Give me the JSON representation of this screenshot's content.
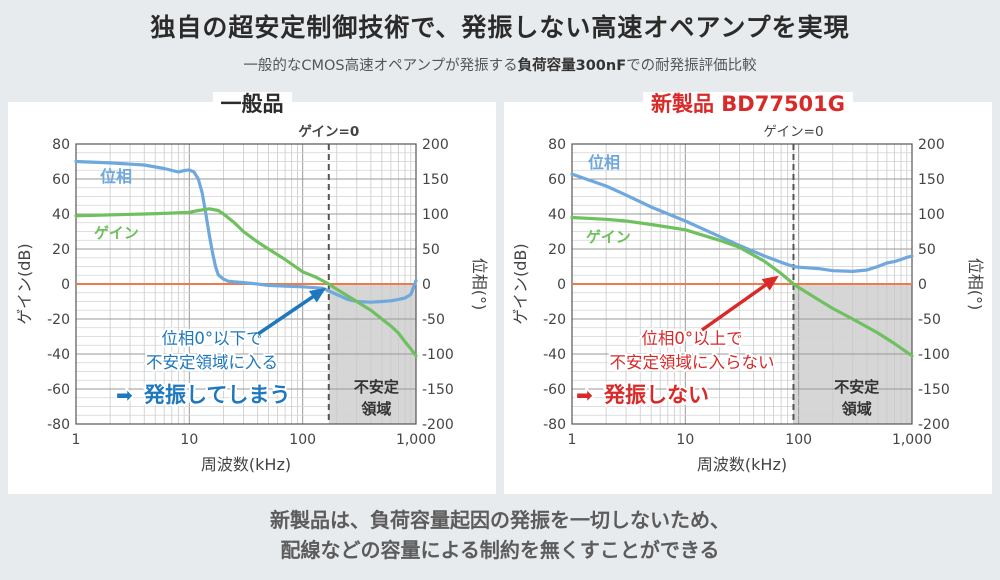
{
  "title": "独自の超安定制御技術で、発振しない高速オペアンプを実現",
  "subtitle_pre": "一般的なCMOS高速オペアンプが発振する",
  "subtitle_bold": "負荷容量300nF",
  "subtitle_post": "での耐発振評価比較",
  "footer_line1": "新製品は、負荷容量起因の発振を一切しないため、",
  "footer_line2": "配線などの容量による制約を無くすことができる",
  "colors": {
    "phase": "#6fa8dc",
    "gain": "#6fc05f",
    "zero_line": "#f07a4a",
    "unstable_fill": "#d6d6d6",
    "red": "#d92a2a",
    "blue_text": "#1e78be"
  },
  "chart_data": [
    {
      "type": "line",
      "title": "一般品",
      "xlabel": "周波数(kHz)",
      "ylabel": "ゲイン(dB)",
      "y2label": "位相(°)",
      "x_scale": "log",
      "xlim": [
        1,
        1000
      ],
      "ylim": [
        -80,
        80
      ],
      "y2lim": [
        -200,
        200
      ],
      "x_ticks": [
        {
          "v": 1,
          "label": "1"
        },
        {
          "v": 10,
          "label": "10"
        },
        {
          "v": 100,
          "label": "100"
        },
        {
          "v": 1000,
          "label": "1,000"
        }
      ],
      "y_ticks": [
        80,
        60,
        40,
        20,
        0,
        -20,
        -40,
        -60,
        -80
      ],
      "y2_ticks": [
        200,
        150,
        100,
        50,
        0,
        -50,
        -100,
        -150,
        -200
      ],
      "grid": true,
      "gain_crossover_kHz": 170,
      "crossover_label": "ゲイン=0",
      "unstable_label_1": "不安定",
      "unstable_label_2": "領域",
      "series": [
        {
          "name": "位相",
          "axis": "right",
          "color": "#6fa8dc",
          "x": [
            1,
            2,
            4,
            6,
            8,
            9,
            10,
            11,
            12,
            13,
            14,
            15,
            16,
            17,
            18,
            20,
            22,
            25,
            30,
            40,
            50,
            70,
            100,
            150,
            200,
            250,
            300,
            400,
            500,
            600,
            700,
            800,
            900,
            950,
            1000
          ],
          "values": [
            175,
            173,
            170,
            165,
            160,
            162,
            163,
            160,
            150,
            130,
            100,
            70,
            45,
            25,
            13,
            7,
            4,
            3,
            2,
            0,
            -2,
            -3,
            -4,
            -6,
            -15,
            -22,
            -25,
            -26,
            -25,
            -24,
            -22,
            -20,
            -15,
            -5,
            5
          ]
        },
        {
          "name": "ゲイン",
          "axis": "left",
          "color": "#6fc05f",
          "x": [
            1,
            2,
            4,
            7,
            10,
            12,
            15,
            18,
            20,
            25,
            30,
            40,
            50,
            70,
            100,
            130,
            170,
            200,
            300,
            400,
            500,
            600,
            700,
            800,
            900,
            1000
          ],
          "values": [
            39,
            39.5,
            40,
            40.5,
            41,
            42,
            43,
            42,
            40,
            35,
            30,
            24,
            20,
            14,
            7,
            4,
            0,
            -3,
            -10,
            -15,
            -20,
            -24,
            -28,
            -33,
            -37,
            -41
          ]
        }
      ],
      "annotation": {
        "line1": "位相0°以下で",
        "line2": "不安定領域に入る",
        "line3": "発振してしまう",
        "arrow": "➡"
      }
    },
    {
      "type": "line",
      "title": "新製品 BD77501G",
      "xlabel": "周波数(kHz)",
      "ylabel": "ゲイン(dB)",
      "y2label": "位相(°)",
      "x_scale": "log",
      "xlim": [
        1,
        1000
      ],
      "ylim": [
        -80,
        80
      ],
      "y2lim": [
        -200,
        200
      ],
      "x_ticks": [
        {
          "v": 1,
          "label": "1"
        },
        {
          "v": 10,
          "label": "10"
        },
        {
          "v": 100,
          "label": "100"
        },
        {
          "v": 1000,
          "label": "1,000"
        }
      ],
      "y_ticks": [
        80,
        60,
        40,
        20,
        0,
        -20,
        -40,
        -60,
        -80
      ],
      "y2_ticks": [
        200,
        150,
        100,
        50,
        0,
        -50,
        -100,
        -150,
        -200
      ],
      "grid": true,
      "gain_crossover_kHz": 90,
      "crossover_label": "ゲイン=0",
      "unstable_label_1": "不安定",
      "unstable_label_2": "領域",
      "series": [
        {
          "name": "位相",
          "axis": "right",
          "color": "#6fa8dc",
          "x": [
            1,
            2,
            3,
            5,
            10,
            20,
            30,
            50,
            70,
            90,
            100,
            150,
            200,
            300,
            400,
            500,
            600,
            700,
            800,
            900,
            1000
          ],
          "values": [
            157,
            140,
            127,
            110,
            90,
            68,
            55,
            40,
            31,
            25,
            24,
            22,
            19,
            18,
            20,
            25,
            30,
            32,
            35,
            38,
            40
          ]
        },
        {
          "name": "ゲイン",
          "axis": "left",
          "color": "#6fc05f",
          "x": [
            1,
            2,
            3,
            5,
            10,
            20,
            30,
            50,
            70,
            90,
            100,
            150,
            200,
            300,
            500,
            700,
            1000
          ],
          "values": [
            38,
            37,
            36,
            34,
            31,
            25,
            21,
            13,
            6,
            0,
            -2,
            -9,
            -14,
            -20,
            -28,
            -34,
            -41
          ]
        }
      ],
      "annotation": {
        "line1": "位相0°以上で",
        "line2": "不安定領域に入らない",
        "line3": "発振しない",
        "arrow": "➡"
      }
    }
  ]
}
